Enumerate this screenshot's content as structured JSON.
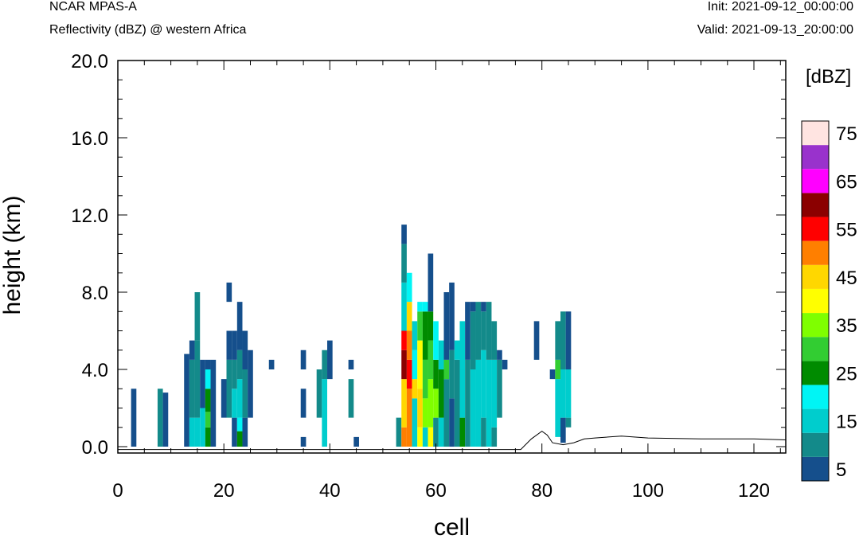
{
  "header": {
    "model": "NCAR MPAS-A",
    "field": "Reflectivity (dBZ) @ western Africa",
    "init": "Init: 2021-09-12_00:00:00",
    "valid": "Valid: 2021-09-13_20:00:00"
  },
  "colorbar": {
    "unit_label": "[dBZ]",
    "colors": [
      "#154f8c",
      "#138a8a",
      "#00cdcd",
      "#00f5f5",
      "#008b00",
      "#32cd32",
      "#7fff00",
      "#ffff00",
      "#ffd700",
      "#ff7f00",
      "#ff0000",
      "#8b0000",
      "#ff00ff",
      "#9932cc",
      "#ffe4e1"
    ],
    "labels": [
      "5",
      "15",
      "25",
      "35",
      "45",
      "55",
      "65",
      "75"
    ]
  },
  "chart_data": {
    "type": "heatmap",
    "xlabel": "cell",
    "ylabel": "height (km)",
    "xlim": [
      0,
      126
    ],
    "ylim": [
      0,
      20
    ],
    "x_ticks": [
      "0",
      "20",
      "40",
      "60",
      "80",
      "100",
      "120"
    ],
    "y_ticks": [
      "0.0",
      "4.0",
      "8.0",
      "12.0",
      "16.0",
      "20.0"
    ],
    "cell_height_km": 0.5,
    "columns": [
      {
        "cell": 3,
        "levels": [
          {
            "bottom": 0.0,
            "top": 3.0,
            "dbz": 5
          }
        ]
      },
      {
        "cell": 8,
        "levels": [
          {
            "bottom": 0.0,
            "top": 3.0,
            "dbz": 10
          }
        ]
      },
      {
        "cell": 9,
        "levels": [
          {
            "bottom": 0.0,
            "top": 2.8,
            "dbz": 5
          }
        ]
      },
      {
        "cell": 13,
        "levels": [
          {
            "bottom": 0.0,
            "top": 4.8,
            "dbz": 5
          }
        ]
      },
      {
        "cell": 14,
        "levels": [
          {
            "bottom": 0.0,
            "top": 1.5,
            "dbz": 15
          },
          {
            "bottom": 1.5,
            "top": 4.5,
            "dbz": 10
          },
          {
            "bottom": 4.5,
            "top": 5.5,
            "dbz": 5
          }
        ]
      },
      {
        "cell": 15,
        "levels": [
          {
            "bottom": 0.0,
            "top": 1.5,
            "dbz": 15
          },
          {
            "bottom": 1.5,
            "top": 5.5,
            "dbz": 10
          },
          {
            "bottom": 5.5,
            "top": 8.0,
            "dbz": 10
          }
        ]
      },
      {
        "cell": 16,
        "levels": [
          {
            "bottom": 0.0,
            "top": 2.0,
            "dbz": 15
          },
          {
            "bottom": 2.0,
            "top": 4.5,
            "dbz": 5
          }
        ]
      },
      {
        "cell": 17,
        "levels": [
          {
            "bottom": 0.0,
            "top": 1.0,
            "dbz": 25
          },
          {
            "bottom": 1.0,
            "top": 1.8,
            "dbz": 30
          },
          {
            "bottom": 1.8,
            "top": 3.0,
            "dbz": 25
          },
          {
            "bottom": 3.0,
            "top": 4.0,
            "dbz": 20
          },
          {
            "bottom": 4.0,
            "top": 4.5,
            "dbz": 5
          }
        ]
      },
      {
        "cell": 18,
        "levels": [
          {
            "bottom": 0.0,
            "top": 4.5,
            "dbz": 5
          }
        ]
      },
      {
        "cell": 20,
        "levels": [
          {
            "bottom": 1.5,
            "top": 3.5,
            "dbz": 5
          }
        ]
      },
      {
        "cell": 21,
        "levels": [
          {
            "bottom": 1.5,
            "top": 4.5,
            "dbz": 10
          },
          {
            "bottom": 4.5,
            "top": 6.0,
            "dbz": 5
          },
          {
            "bottom": 7.5,
            "top": 8.5,
            "dbz": 5
          }
        ]
      },
      {
        "cell": 22,
        "levels": [
          {
            "bottom": 0.0,
            "top": 1.5,
            "dbz": 5
          },
          {
            "bottom": 1.5,
            "top": 3.0,
            "dbz": 15
          },
          {
            "bottom": 3.0,
            "top": 4.5,
            "dbz": 10
          },
          {
            "bottom": 4.5,
            "top": 6.0,
            "dbz": 5
          }
        ]
      },
      {
        "cell": 23,
        "levels": [
          {
            "bottom": 0.0,
            "top": 0.8,
            "dbz": 25
          },
          {
            "bottom": 0.8,
            "top": 1.5,
            "dbz": 20
          },
          {
            "bottom": 1.5,
            "top": 3.5,
            "dbz": 15
          },
          {
            "bottom": 3.5,
            "top": 5.0,
            "dbz": 10
          },
          {
            "bottom": 5.0,
            "top": 7.5,
            "dbz": 5
          }
        ]
      },
      {
        "cell": 24,
        "levels": [
          {
            "bottom": 0.0,
            "top": 1.5,
            "dbz": 5
          },
          {
            "bottom": 1.5,
            "top": 4.0,
            "dbz": 10
          },
          {
            "bottom": 4.0,
            "top": 6.0,
            "dbz": 5
          }
        ]
      },
      {
        "cell": 25,
        "levels": [
          {
            "bottom": 1.5,
            "top": 5.0,
            "dbz": 5
          }
        ]
      },
      {
        "cell": 29,
        "levels": [
          {
            "bottom": 4.0,
            "top": 4.5,
            "dbz": 5
          }
        ]
      },
      {
        "cell": 35,
        "levels": [
          {
            "bottom": 0.0,
            "top": 0.5,
            "dbz": 5
          },
          {
            "bottom": 1.5,
            "top": 3.0,
            "dbz": 5
          },
          {
            "bottom": 4.0,
            "top": 5.0,
            "dbz": 5
          }
        ]
      },
      {
        "cell": 38,
        "levels": [
          {
            "bottom": 1.5,
            "top": 4.0,
            "dbz": 10
          }
        ]
      },
      {
        "cell": 39,
        "levels": [
          {
            "bottom": 0.0,
            "top": 3.5,
            "dbz": 15
          },
          {
            "bottom": 3.5,
            "top": 5.0,
            "dbz": 10
          }
        ]
      },
      {
        "cell": 40,
        "levels": [
          {
            "bottom": 3.5,
            "top": 5.5,
            "dbz": 5
          }
        ]
      },
      {
        "cell": 44,
        "levels": [
          {
            "bottom": 1.5,
            "top": 3.5,
            "dbz": 10
          },
          {
            "bottom": 4.0,
            "top": 4.5,
            "dbz": 5
          }
        ]
      },
      {
        "cell": 45,
        "levels": [
          {
            "bottom": 0.0,
            "top": 0.5,
            "dbz": 5
          }
        ]
      },
      {
        "cell": 53,
        "levels": [
          {
            "bottom": 0.0,
            "top": 1.5,
            "dbz": 10
          }
        ]
      },
      {
        "cell": 54,
        "levels": [
          {
            "bottom": 0.0,
            "top": 1.0,
            "dbz": 50
          },
          {
            "bottom": 1.0,
            "top": 3.5,
            "dbz": 45
          },
          {
            "bottom": 3.5,
            "top": 5.0,
            "dbz": 60
          },
          {
            "bottom": 5.0,
            "top": 6.0,
            "dbz": 55
          },
          {
            "bottom": 6.0,
            "top": 8.5,
            "dbz": 15
          },
          {
            "bottom": 8.5,
            "top": 10.5,
            "dbz": 10
          },
          {
            "bottom": 10.5,
            "top": 11.5,
            "dbz": 5
          }
        ]
      },
      {
        "cell": 55,
        "levels": [
          {
            "bottom": 0.0,
            "top": 3.0,
            "dbz": 50
          },
          {
            "bottom": 3.0,
            "top": 4.5,
            "dbz": 55
          },
          {
            "bottom": 4.5,
            "top": 6.0,
            "dbz": 50
          },
          {
            "bottom": 6.0,
            "top": 7.5,
            "dbz": 45
          },
          {
            "bottom": 7.5,
            "top": 9.0,
            "dbz": 20
          }
        ]
      },
      {
        "cell": 56,
        "levels": [
          {
            "bottom": 0.0,
            "top": 2.5,
            "dbz": 15
          },
          {
            "bottom": 2.5,
            "top": 3.5,
            "dbz": 45
          },
          {
            "bottom": 3.5,
            "top": 5.0,
            "dbz": 20
          },
          {
            "bottom": 5.0,
            "top": 6.5,
            "dbz": 15
          }
        ]
      },
      {
        "cell": 57,
        "levels": [
          {
            "bottom": 0.0,
            "top": 1.0,
            "dbz": 40
          },
          {
            "bottom": 1.0,
            "top": 3.0,
            "dbz": 45
          },
          {
            "bottom": 3.0,
            "top": 5.5,
            "dbz": 40
          },
          {
            "bottom": 5.5,
            "top": 7.0,
            "dbz": 30
          },
          {
            "bottom": 7.0,
            "top": 7.5,
            "dbz": 20
          }
        ]
      },
      {
        "cell": 58,
        "levels": [
          {
            "bottom": 0.0,
            "top": 1.0,
            "dbz": 15
          },
          {
            "bottom": 1.0,
            "top": 2.5,
            "dbz": 35
          },
          {
            "bottom": 2.5,
            "top": 4.5,
            "dbz": 30
          },
          {
            "bottom": 4.5,
            "top": 7.0,
            "dbz": 25
          },
          {
            "bottom": 7.0,
            "top": 7.5,
            "dbz": 20
          }
        ]
      },
      {
        "cell": 59,
        "levels": [
          {
            "bottom": 0.0,
            "top": 1.0,
            "dbz": 40
          },
          {
            "bottom": 1.0,
            "top": 3.5,
            "dbz": 35
          },
          {
            "bottom": 3.5,
            "top": 5.5,
            "dbz": 30
          },
          {
            "bottom": 5.5,
            "top": 7.0,
            "dbz": 25
          },
          {
            "bottom": 7.0,
            "top": 10.0,
            "dbz": 5
          }
        ]
      },
      {
        "cell": 60,
        "levels": [
          {
            "bottom": 0.0,
            "top": 1.5,
            "dbz": 10
          },
          {
            "bottom": 1.5,
            "top": 3.0,
            "dbz": 35
          },
          {
            "bottom": 3.0,
            "top": 4.5,
            "dbz": 25
          },
          {
            "bottom": 4.5,
            "top": 6.5,
            "dbz": 20
          }
        ]
      },
      {
        "cell": 61,
        "levels": [
          {
            "bottom": 0.0,
            "top": 1.5,
            "dbz": 15
          },
          {
            "bottom": 1.5,
            "top": 4.0,
            "dbz": 25
          },
          {
            "bottom": 4.0,
            "top": 5.5,
            "dbz": 15
          }
        ]
      },
      {
        "cell": 62,
        "levels": [
          {
            "bottom": 0.0,
            "top": 3.5,
            "dbz": 10
          },
          {
            "bottom": 3.5,
            "top": 4.5,
            "dbz": 30
          },
          {
            "bottom": 4.5,
            "top": 8.0,
            "dbz": 5
          }
        ]
      },
      {
        "cell": 63,
        "levels": [
          {
            "bottom": 0.0,
            "top": 2.5,
            "dbz": 5
          },
          {
            "bottom": 2.5,
            "top": 5.0,
            "dbz": 10
          },
          {
            "bottom": 5.0,
            "top": 8.5,
            "dbz": 5
          }
        ]
      },
      {
        "cell": 64,
        "levels": [
          {
            "bottom": 0.0,
            "top": 4.5,
            "dbz": 10
          },
          {
            "bottom": 4.5,
            "top": 5.5,
            "dbz": 15
          }
        ]
      },
      {
        "cell": 65,
        "levels": [
          {
            "bottom": 0.0,
            "top": 1.5,
            "dbz": 25
          },
          {
            "bottom": 1.5,
            "top": 4.0,
            "dbz": 15
          },
          {
            "bottom": 4.0,
            "top": 6.5,
            "dbz": 15
          }
        ]
      },
      {
        "cell": 66,
        "levels": [
          {
            "bottom": 0.0,
            "top": 4.5,
            "dbz": 10
          },
          {
            "bottom": 4.5,
            "top": 7.5,
            "dbz": 5
          }
        ]
      },
      {
        "cell": 67,
        "levels": [
          {
            "bottom": 0.0,
            "top": 4.0,
            "dbz": 15
          },
          {
            "bottom": 4.0,
            "top": 7.0,
            "dbz": 10
          },
          {
            "bottom": 7.0,
            "top": 7.5,
            "dbz": 5
          }
        ]
      },
      {
        "cell": 68,
        "levels": [
          {
            "bottom": 0.0,
            "top": 4.5,
            "dbz": 15
          },
          {
            "bottom": 4.5,
            "top": 7.5,
            "dbz": 10
          }
        ]
      },
      {
        "cell": 69,
        "levels": [
          {
            "bottom": 0.0,
            "top": 1.5,
            "dbz": 10
          },
          {
            "bottom": 1.5,
            "top": 5.0,
            "dbz": 15
          },
          {
            "bottom": 5.0,
            "top": 7.0,
            "dbz": 10
          },
          {
            "bottom": 7.0,
            "top": 7.5,
            "dbz": 5
          }
        ]
      },
      {
        "cell": 70,
        "levels": [
          {
            "bottom": 0.0,
            "top": 4.5,
            "dbz": 15
          },
          {
            "bottom": 4.5,
            "top": 7.5,
            "dbz": 10
          }
        ]
      },
      {
        "cell": 71,
        "levels": [
          {
            "bottom": 0.0,
            "top": 1.0,
            "dbz": 10
          },
          {
            "bottom": 1.0,
            "top": 4.5,
            "dbz": 15
          },
          {
            "bottom": 4.5,
            "top": 6.5,
            "dbz": 10
          }
        ]
      },
      {
        "cell": 72,
        "levels": [
          {
            "bottom": 1.5,
            "top": 4.5,
            "dbz": 10
          },
          {
            "bottom": 4.5,
            "top": 5.0,
            "dbz": 5
          }
        ]
      },
      {
        "cell": 73,
        "levels": [
          {
            "bottom": 4.0,
            "top": 4.5,
            "dbz": 5
          }
        ]
      },
      {
        "cell": 79,
        "levels": [
          {
            "bottom": 4.5,
            "top": 6.5,
            "dbz": 5
          }
        ]
      },
      {
        "cell": 82,
        "levels": [
          {
            "bottom": 3.5,
            "top": 4.0,
            "dbz": 5
          }
        ]
      },
      {
        "cell": 83,
        "levels": [
          {
            "bottom": 0.5,
            "top": 3.5,
            "dbz": 15
          },
          {
            "bottom": 3.5,
            "top": 4.5,
            "dbz": 30
          },
          {
            "bottom": 4.5,
            "top": 6.5,
            "dbz": 10
          }
        ]
      },
      {
        "cell": 84,
        "levels": [
          {
            "bottom": 0.2,
            "top": 1.5,
            "dbz": 5
          },
          {
            "bottom": 1.5,
            "top": 4.0,
            "dbz": 15
          },
          {
            "bottom": 4.0,
            "top": 7.0,
            "dbz": 10
          }
        ]
      },
      {
        "cell": 85,
        "levels": [
          {
            "bottom": 1.0,
            "top": 1.5,
            "dbz": 10
          },
          {
            "bottom": 1.5,
            "top": 4.0,
            "dbz": 15
          },
          {
            "bottom": 4.0,
            "top": 7.0,
            "dbz": 5
          }
        ]
      }
    ],
    "terrain_line": {
      "x": [
        0,
        76,
        78,
        80,
        81,
        82,
        84,
        86,
        88,
        90,
        95,
        100,
        110,
        120,
        126
      ],
      "y": [
        -0.15,
        -0.15,
        0.4,
        0.8,
        0.6,
        0.2,
        0.1,
        0.2,
        0.4,
        0.45,
        0.55,
        0.45,
        0.4,
        0.4,
        0.35
      ]
    }
  }
}
